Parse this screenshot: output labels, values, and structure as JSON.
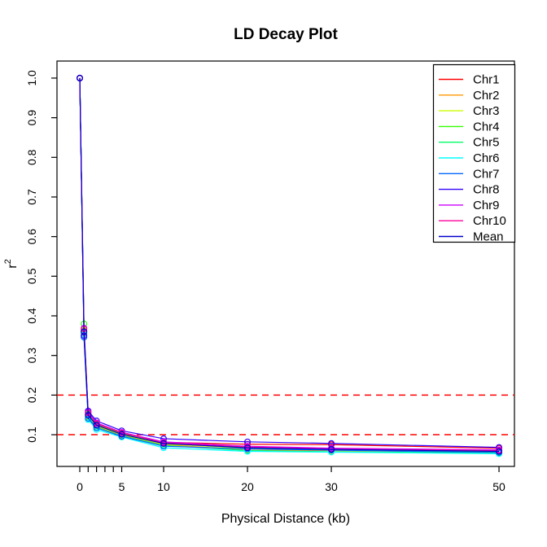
{
  "title": "LD Decay Plot",
  "axes": {
    "x_label": "Physical Distance (kb)",
    "y_label_base": "r",
    "y_label_exponent": "2"
  },
  "colors": {
    "background": "#FFFFFF",
    "axis": "#000000",
    "reference_line": "#FF0000"
  },
  "chart_data": {
    "type": "line",
    "title": "LD Decay Plot",
    "xlabel": "Physical Distance (kb)",
    "ylabel": "r^2",
    "marker": "open-circle",
    "grid": false,
    "legend_position": "top-right",
    "x": [
      0,
      0.5,
      1,
      2,
      5,
      10,
      20,
      30,
      50
    ],
    "xlim": [
      -2.72,
      51.84
    ],
    "ylim": [
      0.02,
      1.043
    ],
    "x_ticks": [
      0,
      1,
      2,
      3,
      4,
      5,
      10,
      20,
      30,
      50
    ],
    "x_tick_labels": [
      "0",
      "",
      "",
      "",
      "",
      "5",
      "10",
      "20",
      "30",
      "50"
    ],
    "y_ticks": [
      0.1,
      0.2,
      0.3,
      0.4,
      0.5,
      0.6,
      0.7,
      0.8,
      0.9,
      1.0
    ],
    "y_tick_labels": [
      "0.1",
      "0.2",
      "0.3",
      "0.4",
      "0.5",
      "0.6",
      "0.7",
      "0.8",
      "0.9",
      "1.0"
    ],
    "reference_lines": [
      {
        "y": 0.2,
        "color": "#FF0000",
        "style": "dashed"
      },
      {
        "y": 0.1,
        "color": "#FF0000",
        "style": "dashed"
      }
    ],
    "series": [
      {
        "name": "Chr1",
        "color": "#FF0000",
        "values": [
          1.0,
          0.363,
          0.15,
          0.127,
          0.104,
          0.081,
          0.076,
          0.075,
          0.066
        ]
      },
      {
        "name": "Chr2",
        "color": "#FF9900",
        "values": [
          1.0,
          0.357,
          0.146,
          0.121,
          0.099,
          0.075,
          0.061,
          0.06,
          0.056
        ]
      },
      {
        "name": "Chr3",
        "color": "#CCFF00",
        "values": [
          1.0,
          0.364,
          0.149,
          0.123,
          0.1,
          0.077,
          0.065,
          0.062,
          0.058
        ]
      },
      {
        "name": "Chr4",
        "color": "#33FF00",
        "values": [
          1.0,
          0.38,
          0.153,
          0.125,
          0.102,
          0.078,
          0.067,
          0.062,
          0.057
        ]
      },
      {
        "name": "Chr5",
        "color": "#00FF66",
        "values": [
          1.0,
          0.359,
          0.144,
          0.119,
          0.097,
          0.073,
          0.06,
          0.057,
          0.054
        ]
      },
      {
        "name": "Chr6",
        "color": "#00FFFF",
        "values": [
          1.0,
          0.353,
          0.138,
          0.113,
          0.094,
          0.067,
          0.058,
          0.056,
          0.052
        ]
      },
      {
        "name": "Chr7",
        "color": "#0066FF",
        "values": [
          1.0,
          0.346,
          0.141,
          0.117,
          0.096,
          0.071,
          0.064,
          0.061,
          0.055
        ]
      },
      {
        "name": "Chr8",
        "color": "#3300FF",
        "values": [
          1.0,
          0.35,
          0.16,
          0.135,
          0.11,
          0.09,
          0.082,
          0.078,
          0.068
        ]
      },
      {
        "name": "Chr9",
        "color": "#CC00FF",
        "values": [
          1.0,
          0.369,
          0.157,
          0.13,
          0.106,
          0.082,
          0.071,
          0.066,
          0.062
        ]
      },
      {
        "name": "Chr10",
        "color": "#FF0099",
        "values": [
          1.0,
          0.367,
          0.155,
          0.128,
          0.105,
          0.08,
          0.069,
          0.064,
          0.06
        ]
      },
      {
        "name": "Mean",
        "color": "#0000CD",
        "values": [
          1.0,
          0.36,
          0.149,
          0.124,
          0.101,
          0.078,
          0.067,
          0.063,
          0.058
        ]
      }
    ]
  }
}
